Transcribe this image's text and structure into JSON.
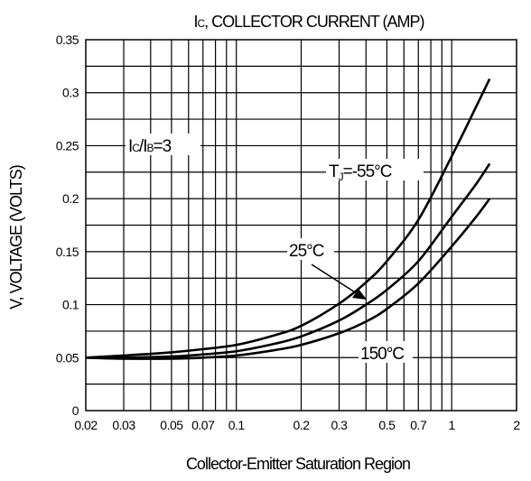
{
  "chart_data": {
    "type": "line",
    "title": "IC, COLLECTOR CURRENT (AMP)",
    "title_parts": {
      "main": "I",
      "sub": "C",
      "rest": ", COLLECTOR CURRENT (AMP)"
    },
    "xlabel": "Collector-Emitter Saturation Region",
    "ylabel": "V, VOLTAGE (VOLTS)",
    "x_scale": "log",
    "xlim": [
      0.02,
      2
    ],
    "ylim": [
      0,
      0.35
    ],
    "grid": true,
    "x_ticks": [
      0.02,
      0.03,
      0.05,
      0.07,
      0.1,
      0.2,
      0.3,
      0.5,
      0.7,
      1,
      2
    ],
    "x_tick_labels": [
      "0.02",
      "0.03",
      "0.05",
      "0.07",
      "0.1",
      "0.2",
      "0.3",
      "0.5",
      "0.7",
      "1",
      "2"
    ],
    "y_ticks": [
      0,
      0.05,
      0.1,
      0.15,
      0.2,
      0.25,
      0.3,
      0.35
    ],
    "y_tick_labels": [
      "0",
      "0.05",
      "0.1",
      "0.15",
      "0.2",
      "0.25",
      "0.3",
      "0.35"
    ],
    "series": [
      {
        "name": "TJ=-55°C",
        "x": [
          0.02,
          0.03,
          0.05,
          0.07,
          0.1,
          0.15,
          0.2,
          0.3,
          0.4,
          0.5,
          0.7,
          1.0,
          1.3,
          1.5
        ],
        "y": [
          0.05,
          0.052,
          0.055,
          0.058,
          0.062,
          0.071,
          0.08,
          0.101,
          0.121,
          0.141,
          0.18,
          0.24,
          0.287,
          0.313
        ]
      },
      {
        "name": "25°C",
        "x": [
          0.02,
          0.03,
          0.05,
          0.07,
          0.1,
          0.15,
          0.2,
          0.3,
          0.4,
          0.5,
          0.7,
          1.0,
          1.3,
          1.5
        ],
        "y": [
          0.05,
          0.05,
          0.051,
          0.053,
          0.056,
          0.063,
          0.07,
          0.085,
          0.1,
          0.114,
          0.141,
          0.183,
          0.214,
          0.233
        ]
      },
      {
        "name": "150°C",
        "x": [
          0.02,
          0.03,
          0.05,
          0.07,
          0.1,
          0.15,
          0.2,
          0.3,
          0.4,
          0.5,
          0.7,
          1.0,
          1.3,
          1.5
        ],
        "y": [
          0.05,
          0.049,
          0.049,
          0.05,
          0.052,
          0.057,
          0.062,
          0.073,
          0.084,
          0.096,
          0.12,
          0.155,
          0.183,
          0.2
        ]
      }
    ],
    "annotations": {
      "ratio": {
        "text": "IC/IB=3",
        "parts": {
          "a": "I",
          "a_sub": "C",
          "mid": "/I",
          "b_sub": "B",
          "rest": "=3"
        }
      },
      "t_minus55": {
        "text": "TJ=-55°C",
        "parts": {
          "a": "T",
          "a_sub": "J",
          "rest": "=-55°C"
        }
      },
      "t_25": {
        "text": "25°C"
      },
      "t_150": {
        "text": "150°C"
      }
    },
    "colors": {
      "line": "#000000",
      "grid": "#000000",
      "background": "#ffffff"
    }
  }
}
